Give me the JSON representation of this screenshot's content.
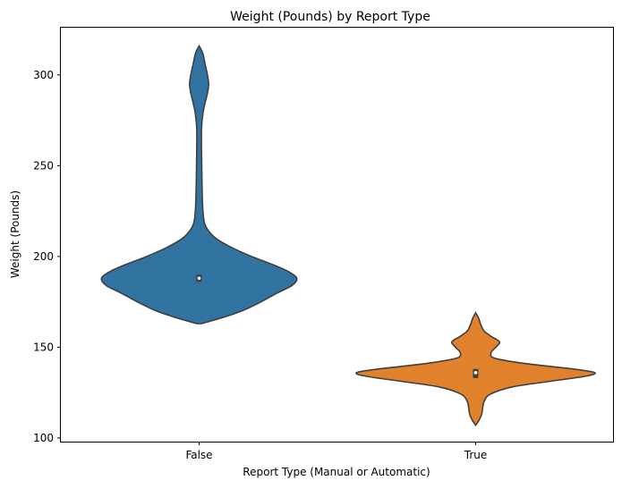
{
  "chart_data": {
    "type": "violin",
    "title": "Weight (Pounds) by Report Type",
    "xlabel": "Report Type (Manual or Automatic)",
    "ylabel": "Weight (Pounds)",
    "categories": [
      "False",
      "True"
    ],
    "ylim": [
      98,
      326
    ],
    "yticks": [
      100,
      150,
      200,
      250,
      300
    ],
    "grid": false,
    "legend": "none",
    "series": [
      {
        "category": "False",
        "color": "#3274a1",
        "min": 163,
        "q1": 186,
        "median": 188,
        "q3": 190,
        "max": 316,
        "density_profile": [
          [
            163,
            0.02
          ],
          [
            166,
            0.18
          ],
          [
            170,
            0.36
          ],
          [
            175,
            0.52
          ],
          [
            180,
            0.66
          ],
          [
            184,
            0.78
          ],
          [
            188,
            0.82
          ],
          [
            192,
            0.74
          ],
          [
            196,
            0.6
          ],
          [
            200,
            0.44
          ],
          [
            205,
            0.27
          ],
          [
            210,
            0.14
          ],
          [
            215,
            0.07
          ],
          [
            220,
            0.04
          ],
          [
            230,
            0.028
          ],
          [
            250,
            0.022
          ],
          [
            270,
            0.02
          ],
          [
            280,
            0.035
          ],
          [
            290,
            0.07
          ],
          [
            295,
            0.08
          ],
          [
            300,
            0.07
          ],
          [
            306,
            0.05
          ],
          [
            312,
            0.03
          ],
          [
            316,
            0.0
          ]
        ]
      },
      {
        "category": "True",
        "color": "#e1812c",
        "min": 107,
        "q1": 133,
        "median": 136,
        "q3": 138,
        "max": 169,
        "density_profile": [
          [
            107,
            0.0
          ],
          [
            110,
            0.03
          ],
          [
            113,
            0.05
          ],
          [
            117,
            0.06
          ],
          [
            120,
            0.07
          ],
          [
            124,
            0.12
          ],
          [
            128,
            0.3
          ],
          [
            131,
            0.6
          ],
          [
            134,
            0.92
          ],
          [
            136,
            1.0
          ],
          [
            138,
            0.82
          ],
          [
            141,
            0.42
          ],
          [
            144,
            0.16
          ],
          [
            147,
            0.13
          ],
          [
            150,
            0.17
          ],
          [
            153,
            0.2
          ],
          [
            156,
            0.13
          ],
          [
            159,
            0.07
          ],
          [
            163,
            0.04
          ],
          [
            166,
            0.025
          ],
          [
            169,
            0.0
          ]
        ]
      }
    ]
  }
}
